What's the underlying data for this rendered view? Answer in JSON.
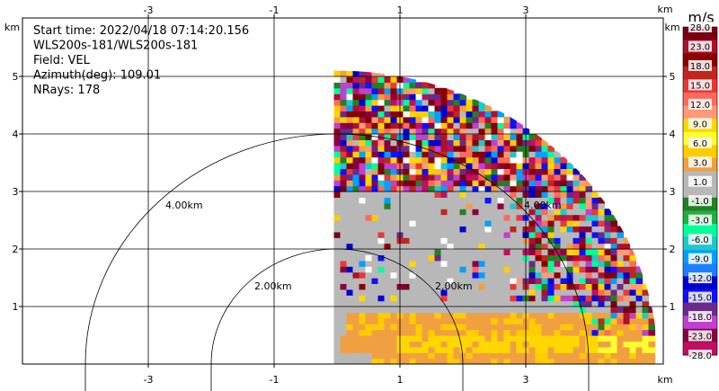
{
  "chart_data": {
    "type": "heatmap",
    "info_lines": [
      "Start time: 2022/04/18 07:14:20.156",
      "WLS200s-181/WLS200s-181",
      "Field: VEL",
      "Azimuth(deg): 109.01",
      "NRays: 178"
    ],
    "axes": {
      "x_unit": "km",
      "y_unit": "km",
      "xlim": [
        -5,
        5
      ],
      "ylim": [
        0,
        5.2
      ],
      "x_ticks": [
        -3,
        -1,
        1,
        3
      ],
      "x_tick_labels": [
        "-3",
        "-1",
        "1",
        "3"
      ],
      "y_ticks": [
        1,
        2,
        3,
        4,
        5
      ],
      "y_tick_labels": [
        "1",
        "2",
        "3",
        "4",
        "5"
      ],
      "grid": true
    },
    "range_rings": [
      {
        "radius_km": 2,
        "label": "2.00km"
      },
      {
        "radius_km": 4,
        "label": "4.00km"
      }
    ],
    "inner_ring_labels": [
      {
        "radius_km": 2,
        "label": "2.00km"
      },
      {
        "radius_km": 4,
        "label": "4.00km"
      }
    ],
    "scan": {
      "origin_km": [
        0,
        0
      ],
      "max_range_km": 5.1,
      "az_min_deg": 0,
      "az_max_deg": 90
    },
    "colorbar": {
      "unit": "m/s",
      "labels": [
        "28.0",
        "23.0",
        "18.0",
        "15.0",
        "12.0",
        "9.0",
        "6.0",
        "3.0",
        "1.0",
        "-1.0",
        "-3.0",
        "-6.0",
        "-9.0",
        "-12.0",
        "-15.0",
        "-18.0",
        "-23.0",
        "-28.0"
      ],
      "colors": [
        "#7a0010",
        "#b0102a",
        "#8a0000",
        "#c0261e",
        "#e83838",
        "#ff6a5a",
        "#ff9a78",
        "#ffd700",
        "#ffff30",
        "#ffcc00",
        "#f0a040",
        "#b8b8b8",
        "#b8b8b8",
        "#238023",
        "#20b040",
        "#00ff99",
        "#20c8c8",
        "#00a0ff",
        "#1a80ff",
        "#0000d0",
        "#1010ff",
        "#6a2a8a",
        "#c040d0",
        "#8a0040",
        "#c01060"
      ]
    }
  }
}
